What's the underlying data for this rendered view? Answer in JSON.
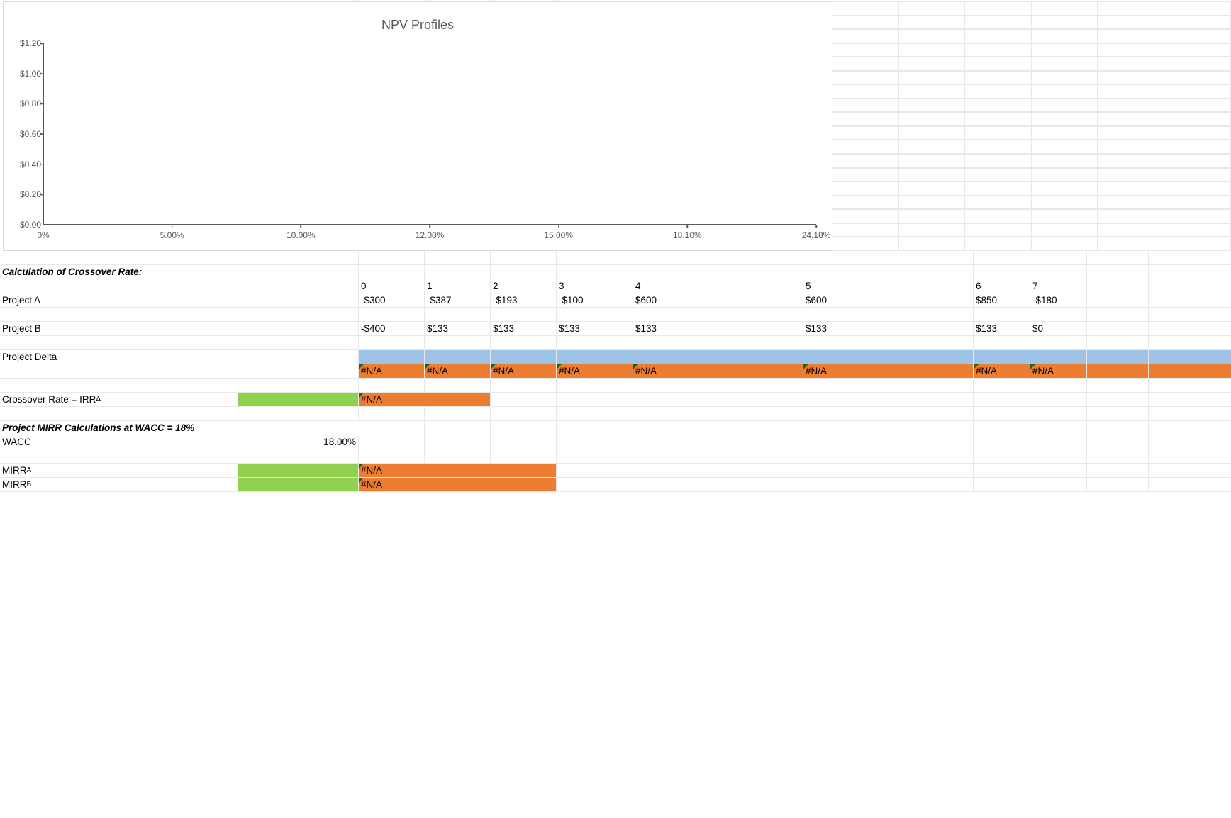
{
  "chart": {
    "type": "line",
    "title": "NPV Profiles",
    "title_fontsize": 18,
    "title_color": "#595959",
    "axis_color": "#595959",
    "tick_label_color": "#595959",
    "tick_label_fontsize": 12,
    "background_color": "#ffffff",
    "border_color": "#d9d9d9",
    "ylim": [
      0.0,
      1.2
    ],
    "ytick_step": 0.2,
    "yticks": [
      "$0.00",
      "$0.20",
      "$0.40",
      "$0.60",
      "$0.80",
      "$1.00",
      "$1.20"
    ],
    "xticks": [
      "0%",
      "5.00%",
      "10.00%",
      "12.00%",
      "15.00%",
      "18.10%",
      "24.18%"
    ],
    "series": []
  },
  "crossover": {
    "heading": "Calculation of Crossover Rate:",
    "years": [
      "0",
      "1",
      "2",
      "3",
      "4",
      "5",
      "6",
      "7"
    ],
    "projectA": {
      "label": "Project A",
      "values": [
        "-$300",
        "-$387",
        "-$193",
        "-$100",
        "$600",
        "$600",
        "$850",
        "-$180"
      ]
    },
    "projectB": {
      "label": "Project B",
      "values": [
        "-$400",
        "$133",
        "$133",
        "$133",
        "$133",
        "$133",
        "$133",
        "$0"
      ]
    },
    "projectDelta": {
      "label": "Project Delta",
      "values": [
        "#N/A",
        "#N/A",
        "#N/A",
        "#N/A",
        "#N/A",
        "#N/A",
        "#N/A",
        "#N/A"
      ],
      "top_fill": "#9dc3e7",
      "bottom_fill": "#ed7d31"
    },
    "crossoverRate": {
      "label_html": "Crossover Rate = IRR<sub>Δ</sub>",
      "label_plain": "Crossover Rate = IRR_Δ",
      "value": "#N/A",
      "label_sidebar_fill": "#92d050",
      "value_fill": "#ed7d31"
    }
  },
  "mirr": {
    "heading": "Project MIRR Calculations at WACC = 18%",
    "wacc": {
      "label": "WACC",
      "value": "18.00%"
    },
    "mirrA": {
      "label_html": "MIRR<sub>A</sub>",
      "label_plain": "MIRR_A",
      "value": "#N/A",
      "label_sidebar_fill": "#92d050",
      "value_fill": "#ed7d31"
    },
    "mirrB": {
      "label_html": "MIRR<sub>B</sub>",
      "label_plain": "MIRR_B",
      "value": "#N/A",
      "label_sidebar_fill": "#92d050",
      "value_fill": "#ed7d31"
    }
  },
  "colors": {
    "green": "#92d050",
    "orange": "#ed7d31",
    "blue": "#9dc3e7",
    "gridline": "#e8e8e8",
    "cell_bg": "#ffffff",
    "text": "#000000"
  }
}
